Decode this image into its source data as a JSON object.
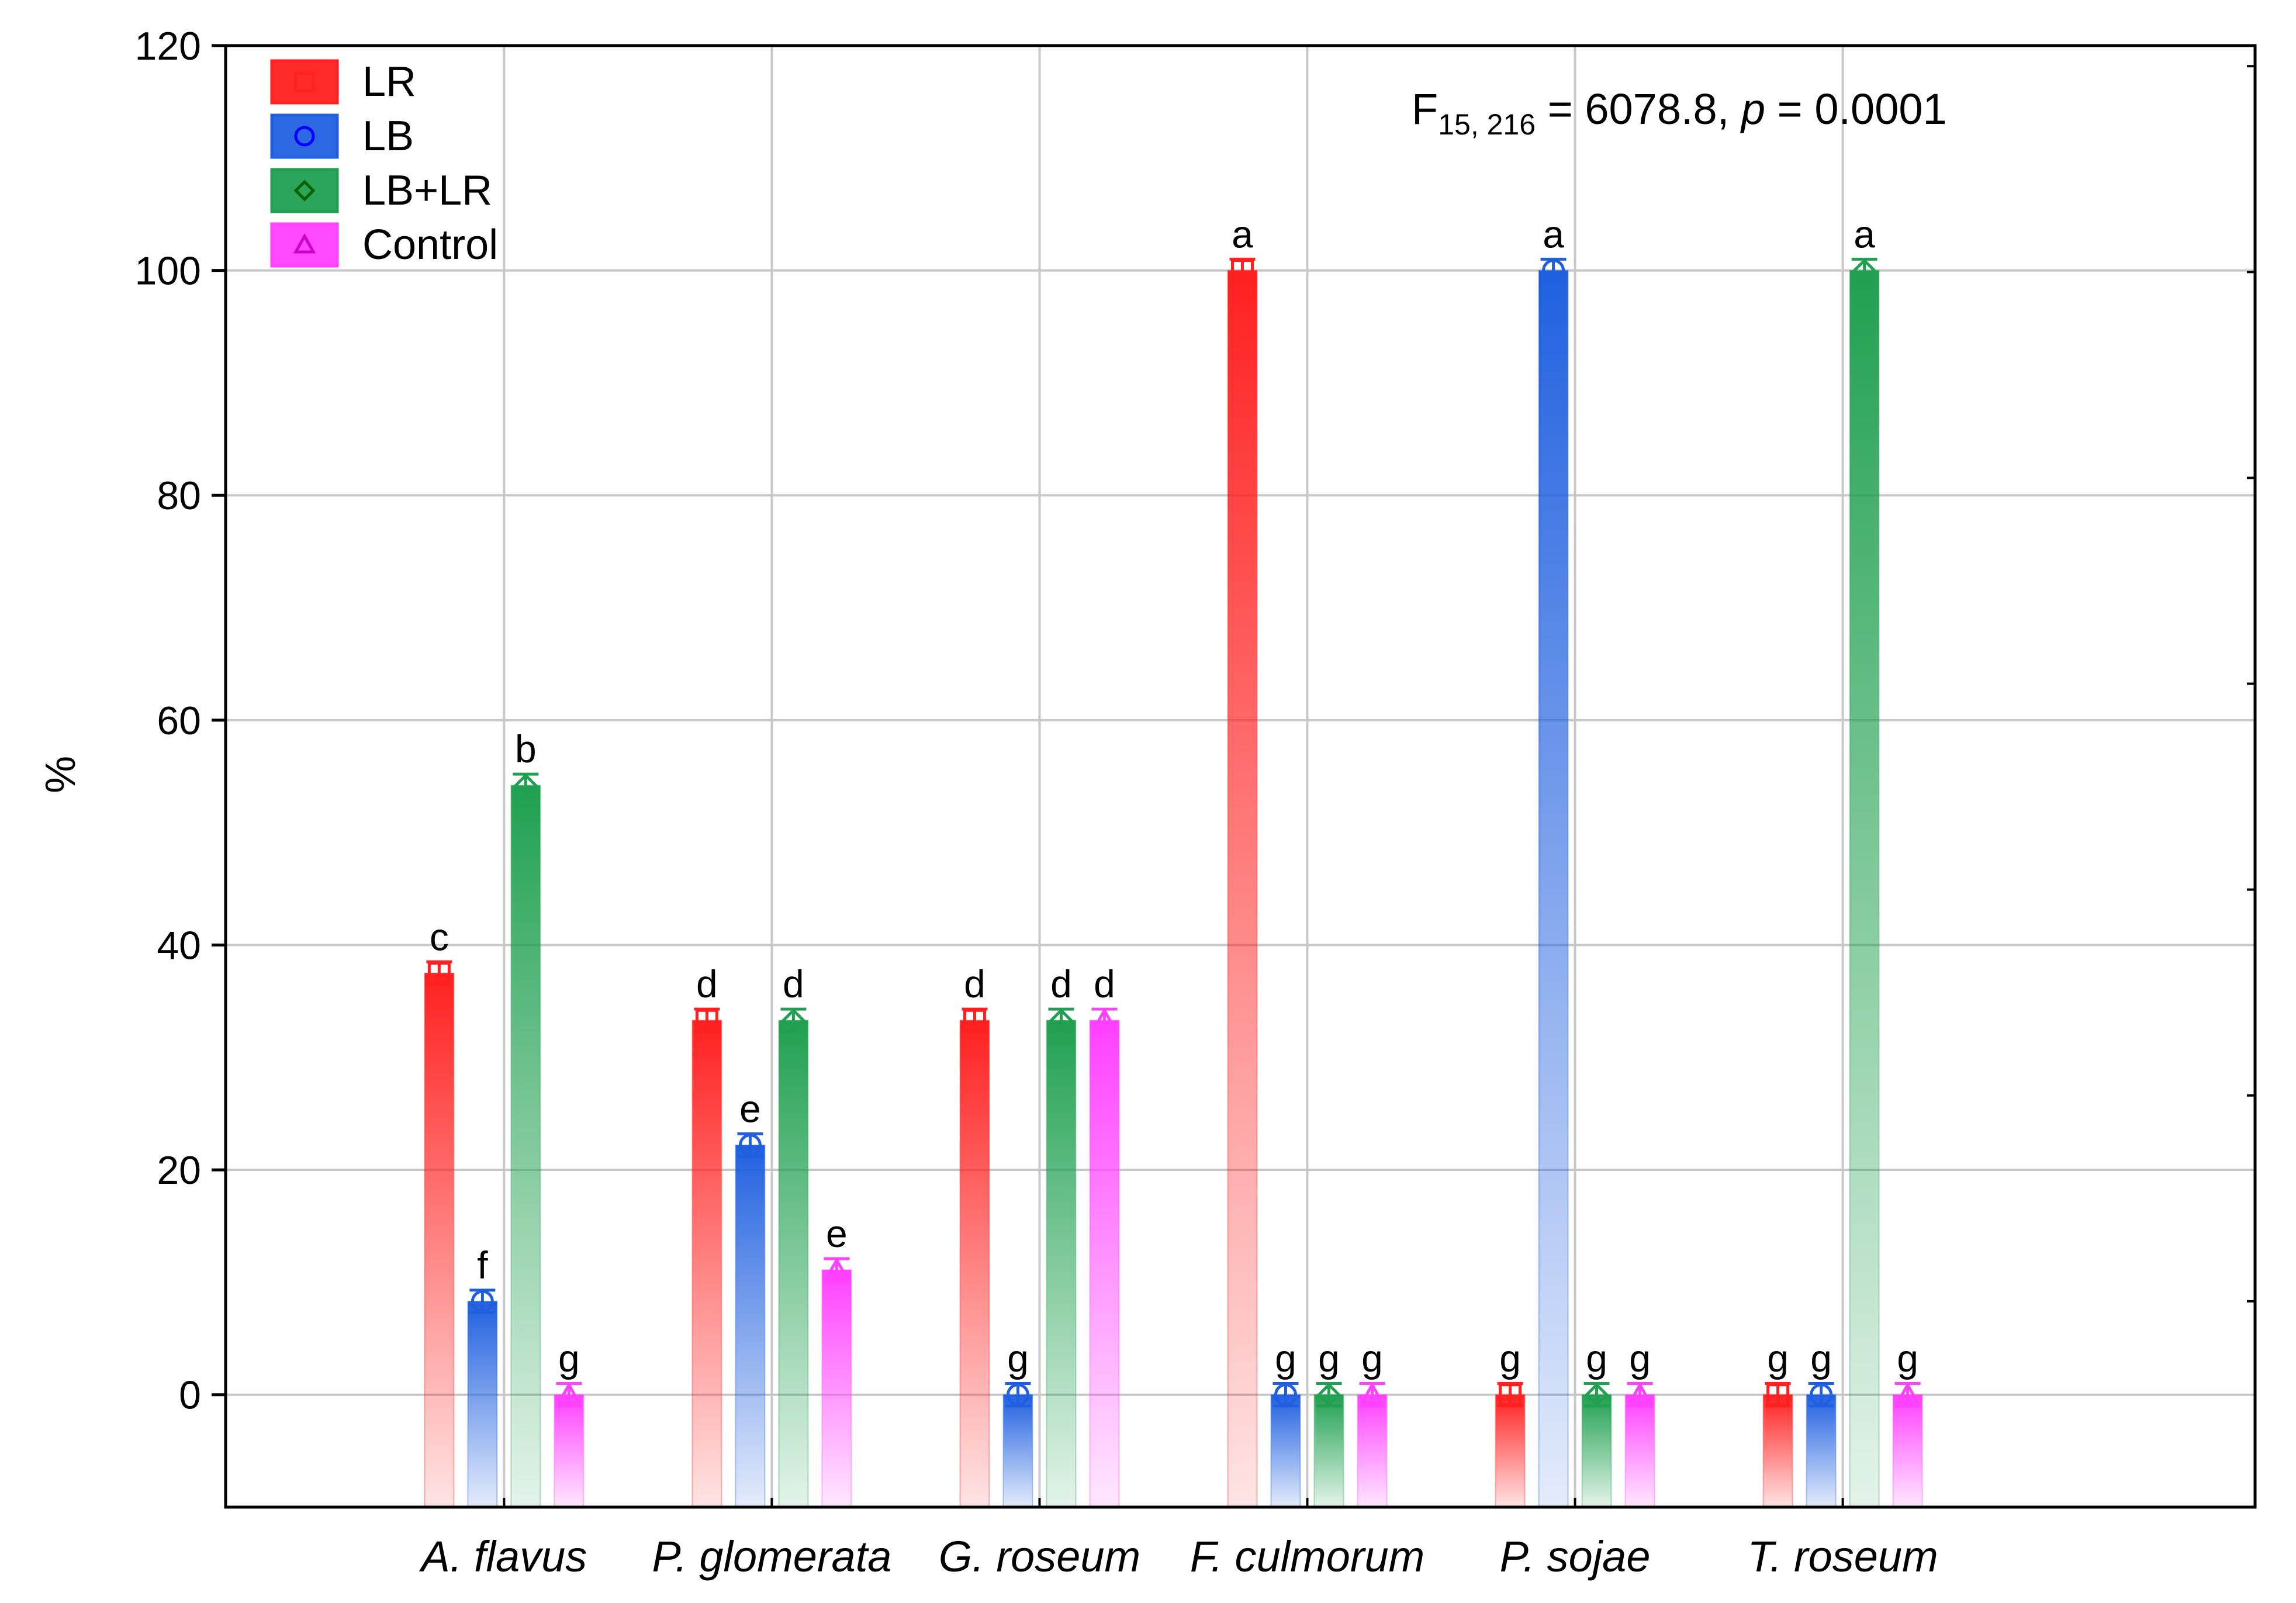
{
  "chart_data": {
    "type": "bar",
    "title": "",
    "xlabel": "",
    "ylabel": "%",
    "ylim": [
      -10,
      120
    ],
    "yticks": [
      0,
      20,
      40,
      60,
      80,
      100,
      120
    ],
    "grid": true,
    "legend_position": "top-left",
    "categories": [
      "A. flavus",
      "P. glomerata",
      "G. roseum",
      "F. culmorum",
      "P. sojae",
      "T. roseum"
    ],
    "series": [
      {
        "name": "LR",
        "color": "#ff2020",
        "marker": "square",
        "values": [
          37.5,
          33.3,
          33.3,
          100,
          0,
          0
        ],
        "err": [
          1.0,
          1.0,
          1.0,
          1.0,
          1.0,
          1.0
        ],
        "labels": [
          "c",
          "d",
          "d",
          "a",
          "g",
          "g"
        ]
      },
      {
        "name": "LB",
        "color": "#2060e0",
        "marker": "circle",
        "values": [
          8.3,
          22.2,
          0,
          0,
          100,
          0
        ],
        "err": [
          1.0,
          1.0,
          1.0,
          1.0,
          1.0,
          1.0
        ],
        "labels": [
          "f",
          "e",
          "g",
          "g",
          "a",
          "g"
        ]
      },
      {
        "name": "LB+LR",
        "color": "#20a050",
        "marker": "diamond",
        "values": [
          54.2,
          33.3,
          33.3,
          0,
          0,
          100
        ],
        "err": [
          1.0,
          1.0,
          1.0,
          1.0,
          1.0,
          1.0
        ],
        "labels": [
          "b",
          "d",
          "d",
          "g",
          "g",
          "a"
        ]
      },
      {
        "name": "Control",
        "color": "#ff40ff",
        "marker": "triangle",
        "values": [
          0,
          11.1,
          33.3,
          0,
          0,
          0
        ],
        "err": [
          1.0,
          1.0,
          1.0,
          1.0,
          1.0,
          1.0
        ],
        "labels": [
          "g",
          "e",
          "d",
          "g",
          "g",
          "g"
        ]
      }
    ],
    "annotation": {
      "prefix": "F",
      "subscript": "15, 216",
      "middle": " = 6078.8, ",
      "p_symbol": "p",
      "suffix": " = 0.0001"
    }
  }
}
